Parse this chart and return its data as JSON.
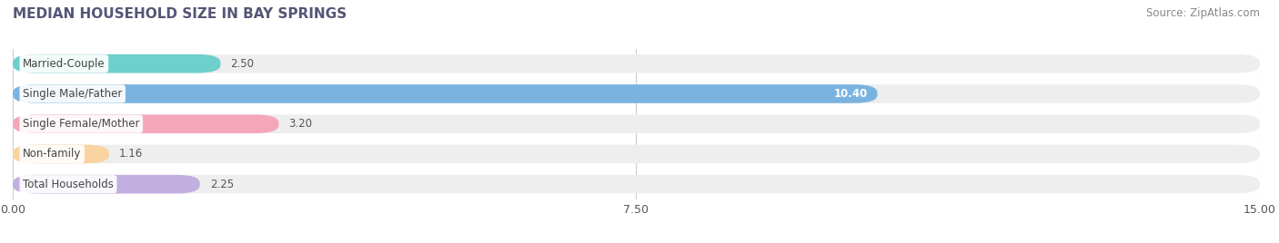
{
  "title": "MEDIAN HOUSEHOLD SIZE IN BAY SPRINGS",
  "source": "Source: ZipAtlas.com",
  "categories": [
    "Married-Couple",
    "Single Male/Father",
    "Single Female/Mother",
    "Non-family",
    "Total Households"
  ],
  "values": [
    2.5,
    10.4,
    3.2,
    1.16,
    2.25
  ],
  "bar_colors": [
    "#6ecfcc",
    "#7ab3e0",
    "#f4a7b9",
    "#f9d4a0",
    "#c3aee0"
  ],
  "bar_bg_color": "#eeeeee",
  "xlim": [
    0,
    15.0
  ],
  "xticks": [
    0.0,
    7.5,
    15.0
  ],
  "xtick_labels": [
    "0.00",
    "7.50",
    "15.00"
  ],
  "title_fontsize": 11,
  "source_fontsize": 8.5,
  "label_fontsize": 8.5,
  "tick_fontsize": 9,
  "background_color": "#ffffff",
  "bar_height": 0.62,
  "grid_color": "#cccccc"
}
